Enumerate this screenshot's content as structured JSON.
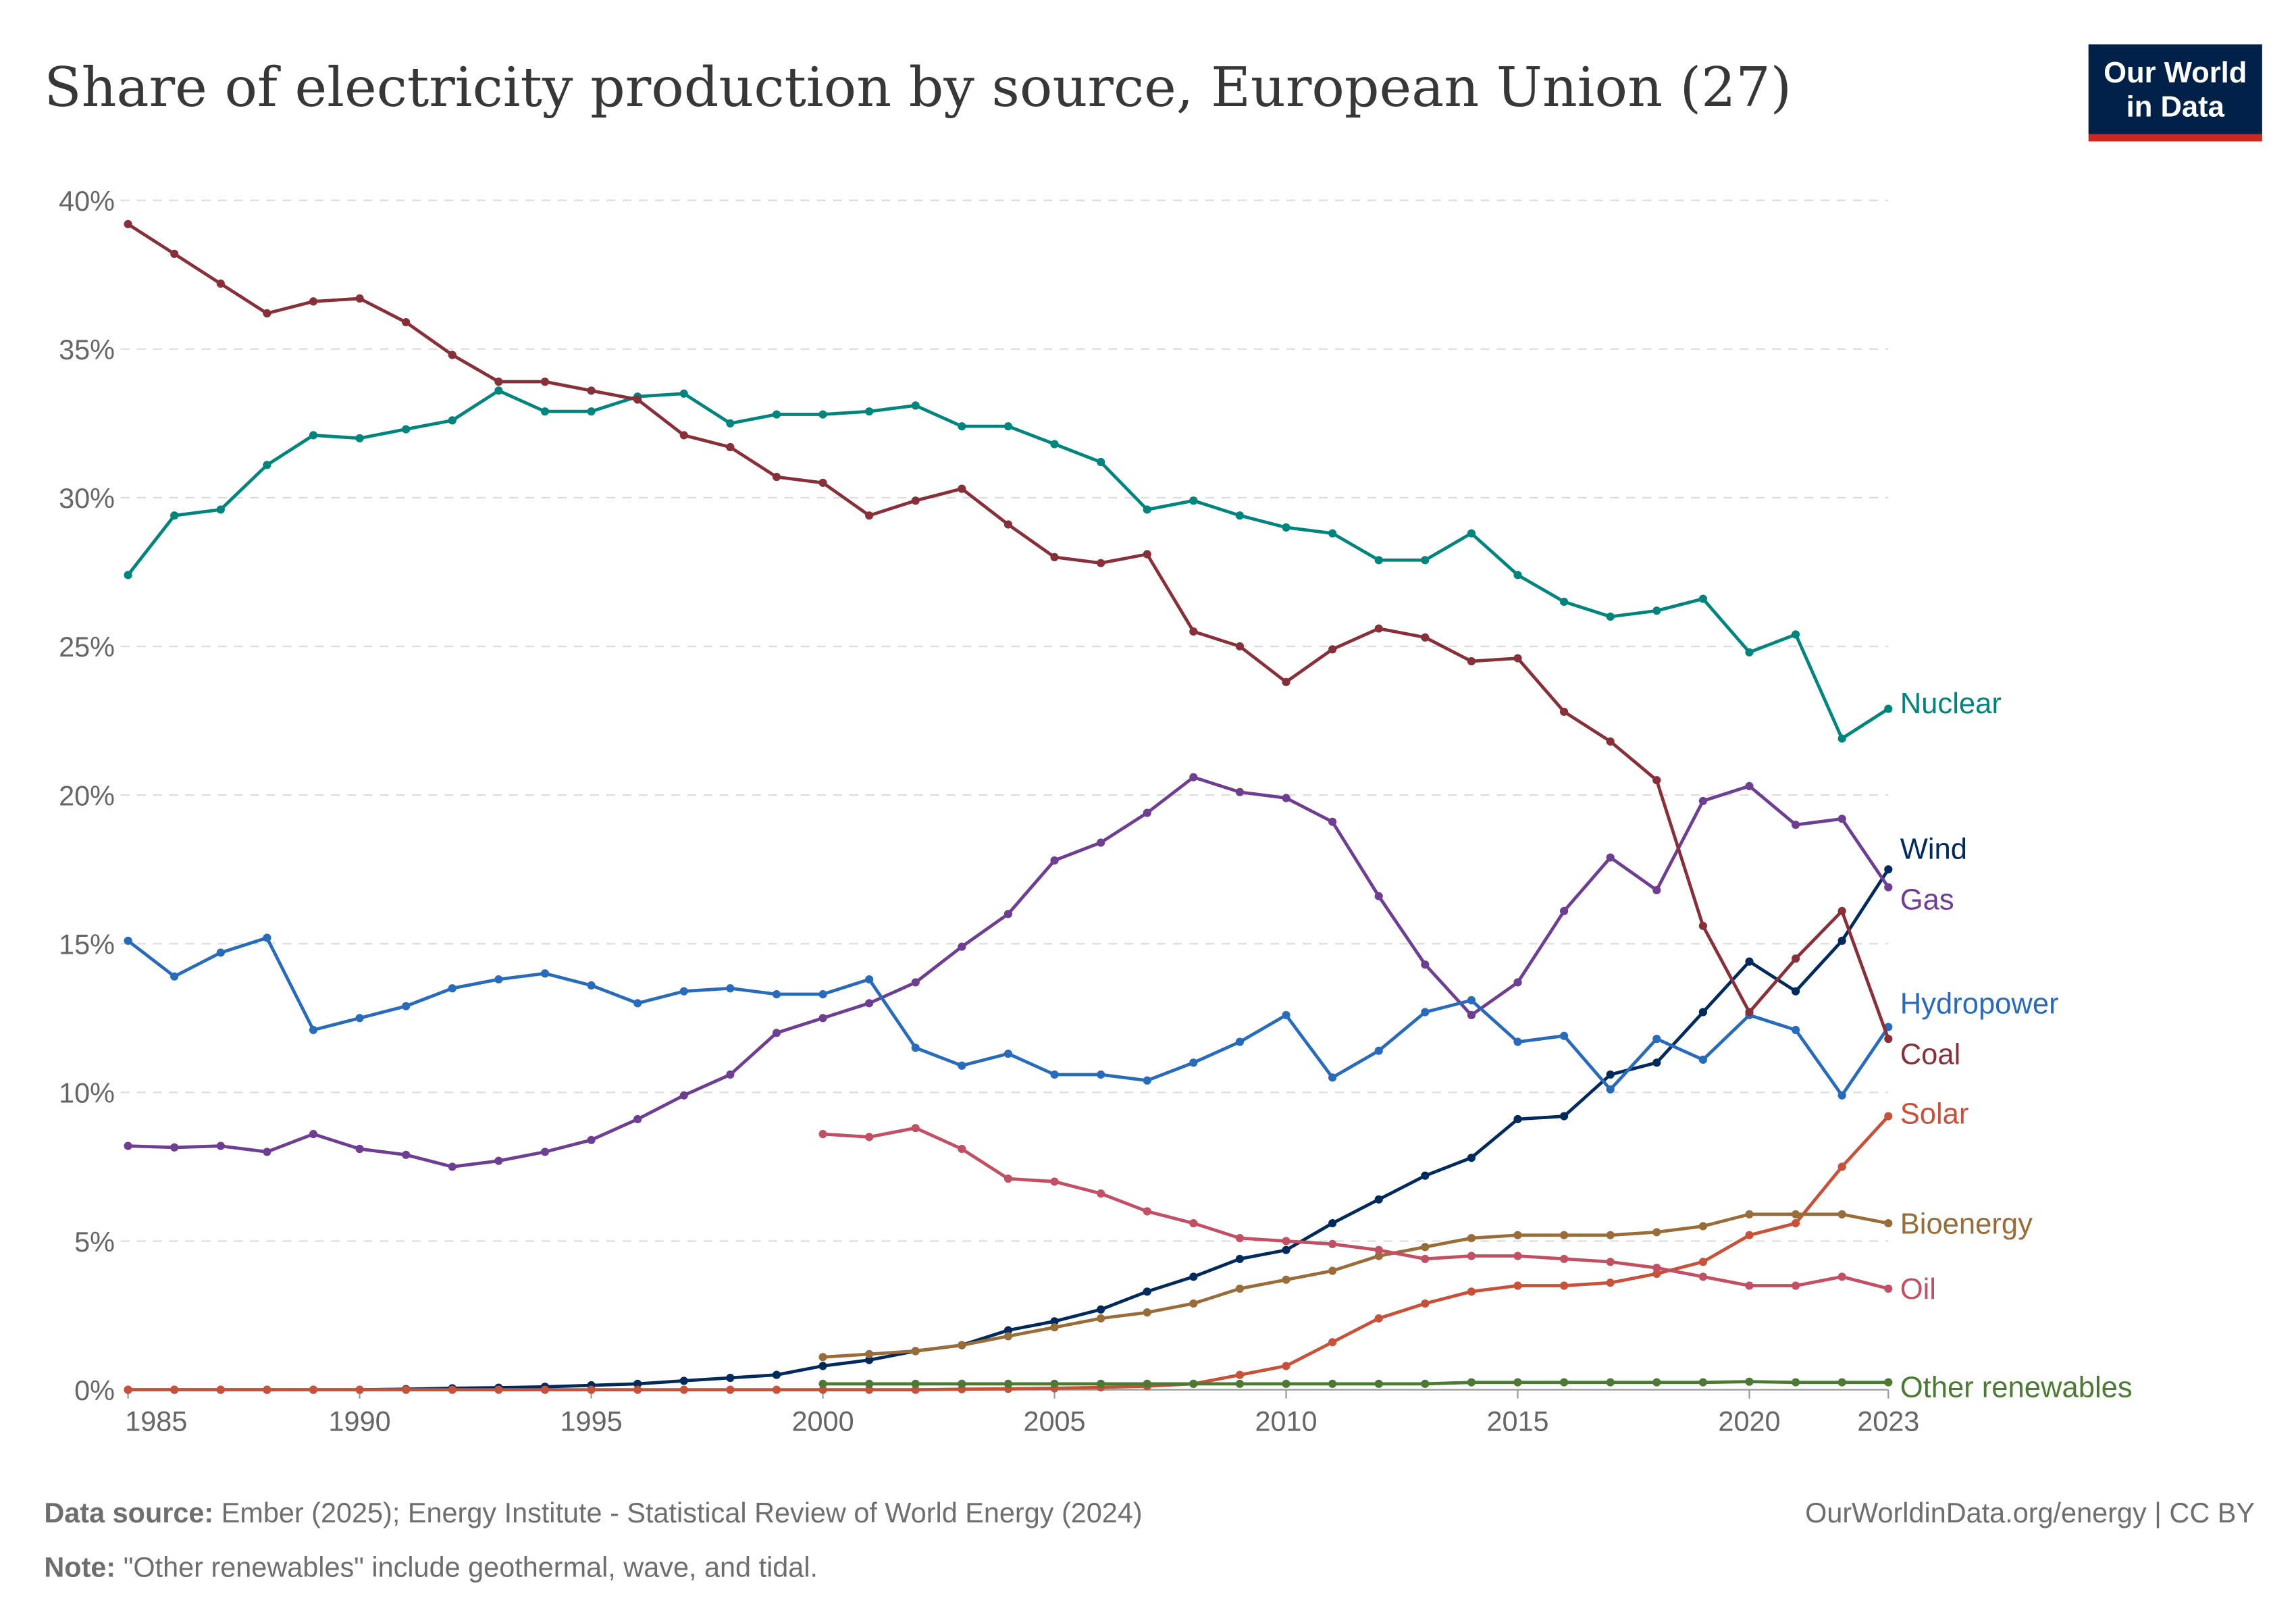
{
  "header": {
    "title": "Share of electricity production by source, European Union (27)",
    "logo_line1": "Our World",
    "logo_line2": "in Data"
  },
  "footer": {
    "source_label": "Data source:",
    "source_text": "Ember (2025); Energy Institute - Statistical Review of World Energy (2024)",
    "url": "OurWorldinData.org/energy | CC BY",
    "note_label": "Note:",
    "note_text": "\"Other renewables\" include geothermal, wave, and tidal."
  },
  "colors": {
    "brand_bg": "#002147",
    "brand_bar": "#ce261e",
    "grid": "#dddddd"
  },
  "chart_data": {
    "type": "line",
    "title": "Share of electricity production by source, European Union (27)",
    "xlabel": "",
    "ylabel": "",
    "xlim": [
      1985,
      2023
    ],
    "ylim": [
      0,
      40
    ],
    "grid": true,
    "legend": "right-end-labels",
    "y_ticks": [
      {
        "value": 0,
        "label": "0%"
      },
      {
        "value": 5,
        "label": "5%"
      },
      {
        "value": 10,
        "label": "10%"
      },
      {
        "value": 15,
        "label": "15%"
      },
      {
        "value": 20,
        "label": "20%"
      },
      {
        "value": 25,
        "label": "25%"
      },
      {
        "value": 30,
        "label": "30%"
      },
      {
        "value": 35,
        "label": "35%"
      },
      {
        "value": 40,
        "label": "40%"
      }
    ],
    "x_ticks": [
      {
        "value": 1985,
        "label": "1985"
      },
      {
        "value": 1990,
        "label": "1990"
      },
      {
        "value": 1995,
        "label": "1995"
      },
      {
        "value": 2000,
        "label": "2000"
      },
      {
        "value": 2005,
        "label": "2005"
      },
      {
        "value": 2010,
        "label": "2010"
      },
      {
        "value": 2015,
        "label": "2015"
      },
      {
        "value": 2020,
        "label": "2020"
      },
      {
        "value": 2023,
        "label": "2023"
      }
    ],
    "series": [
      {
        "name": "Nuclear",
        "color": "#00847e",
        "start": 1985,
        "label_y": 23.1,
        "values": [
          27.4,
          29.4,
          29.6,
          31.1,
          32.1,
          32.0,
          32.3,
          32.6,
          33.6,
          32.9,
          32.9,
          33.4,
          33.5,
          32.5,
          32.8,
          32.8,
          32.9,
          33.1,
          32.4,
          32.4,
          31.8,
          31.2,
          29.6,
          29.9,
          29.4,
          29.0,
          28.8,
          27.9,
          27.9,
          28.8,
          27.4,
          26.5,
          26.0,
          26.2,
          26.6,
          24.8,
          25.4,
          21.9,
          22.9
        ]
      },
      {
        "name": "Wind",
        "color": "#002a5c",
        "start": 1985,
        "label_y": 18.2,
        "values": [
          0,
          0,
          0,
          0,
          0,
          0,
          0.02,
          0.05,
          0.07,
          0.1,
          0.15,
          0.2,
          0.3,
          0.4,
          0.5,
          0.8,
          1.0,
          1.3,
          1.5,
          2.0,
          2.3,
          2.7,
          3.3,
          3.8,
          4.4,
          4.7,
          5.6,
          6.4,
          7.2,
          7.8,
          9.1,
          9.2,
          10.6,
          11.0,
          12.7,
          14.4,
          13.4,
          15.1,
          17.5
        ]
      },
      {
        "name": "Gas",
        "color": "#6d3e91",
        "start": 1985,
        "label_y": 16.5,
        "values": [
          8.2,
          8.15,
          8.2,
          8.0,
          8.6,
          8.1,
          7.9,
          7.5,
          7.7,
          8.0,
          8.4,
          9.1,
          9.9,
          10.6,
          12.0,
          12.5,
          13.0,
          13.7,
          14.9,
          16.0,
          17.8,
          18.4,
          19.4,
          20.6,
          20.1,
          19.9,
          19.1,
          16.6,
          14.3,
          12.6,
          13.7,
          16.1,
          17.9,
          16.8,
          19.8,
          20.3,
          19.0,
          19.2,
          16.9
        ]
      },
      {
        "name": "Hydropower",
        "color": "#286bbb",
        "start": 1985,
        "label_y": 13.0,
        "values": [
          15.1,
          13.9,
          14.7,
          15.2,
          12.1,
          12.5,
          12.9,
          13.5,
          13.8,
          14.0,
          13.6,
          13.0,
          13.4,
          13.5,
          13.3,
          13.3,
          13.8,
          11.5,
          10.9,
          11.3,
          10.6,
          10.6,
          10.4,
          11.0,
          11.7,
          12.6,
          10.5,
          11.4,
          12.7,
          13.1,
          11.7,
          11.9,
          10.1,
          11.8,
          11.1,
          12.6,
          12.1,
          9.9,
          12.2
        ]
      },
      {
        "name": "Coal",
        "color": "#883039",
        "start": 1985,
        "label_y": 11.3,
        "values": [
          39.2,
          38.2,
          37.2,
          36.2,
          36.6,
          36.7,
          35.9,
          34.8,
          33.9,
          33.9,
          33.6,
          33.3,
          32.1,
          31.7,
          30.7,
          30.5,
          29.4,
          29.9,
          30.3,
          29.1,
          28.0,
          27.8,
          28.1,
          25.5,
          25.0,
          23.8,
          24.9,
          25.6,
          25.3,
          24.5,
          24.6,
          22.8,
          21.8,
          20.5,
          15.6,
          12.7,
          14.5,
          16.1,
          11.8
        ]
      },
      {
        "name": "Solar",
        "color": "#c8513a",
        "start": 1985,
        "label_y": 9.3,
        "values": [
          0,
          0,
          0,
          0,
          0,
          0,
          0,
          0,
          0,
          0,
          0,
          0,
          0,
          0,
          0,
          0,
          0,
          0,
          0.02,
          0.03,
          0.05,
          0.08,
          0.12,
          0.2,
          0.5,
          0.8,
          1.6,
          2.4,
          2.9,
          3.3,
          3.5,
          3.5,
          3.6,
          3.9,
          4.3,
          5.2,
          5.6,
          7.5,
          9.2
        ]
      },
      {
        "name": "Bioenergy",
        "color": "#996d39",
        "start": 2000,
        "label_y": 5.6,
        "values": [
          1.1,
          1.2,
          1.3,
          1.5,
          1.8,
          2.1,
          2.4,
          2.6,
          2.9,
          3.4,
          3.7,
          4.0,
          4.5,
          4.8,
          5.1,
          5.2,
          5.2,
          5.2,
          5.3,
          5.5,
          5.9,
          5.9,
          5.9,
          5.6
        ]
      },
      {
        "name": "Oil",
        "color": "#c15065",
        "start": 2000,
        "label_y": 3.4,
        "values": [
          8.6,
          8.5,
          8.8,
          8.1,
          7.1,
          7.0,
          6.6,
          6.0,
          5.6,
          5.1,
          5.0,
          4.9,
          4.7,
          4.4,
          4.5,
          4.5,
          4.4,
          4.3,
          4.1,
          3.8,
          3.5,
          3.5,
          3.8,
          3.4
        ]
      },
      {
        "name": "Other renewables",
        "color": "#4c7a34",
        "start": 2000,
        "label_y": 0.1,
        "values": [
          0.2,
          0.2,
          0.2,
          0.2,
          0.2,
          0.2,
          0.2,
          0.2,
          0.2,
          0.2,
          0.2,
          0.2,
          0.2,
          0.2,
          0.25,
          0.25,
          0.25,
          0.25,
          0.25,
          0.25,
          0.27,
          0.25,
          0.25,
          0.25
        ]
      }
    ]
  }
}
